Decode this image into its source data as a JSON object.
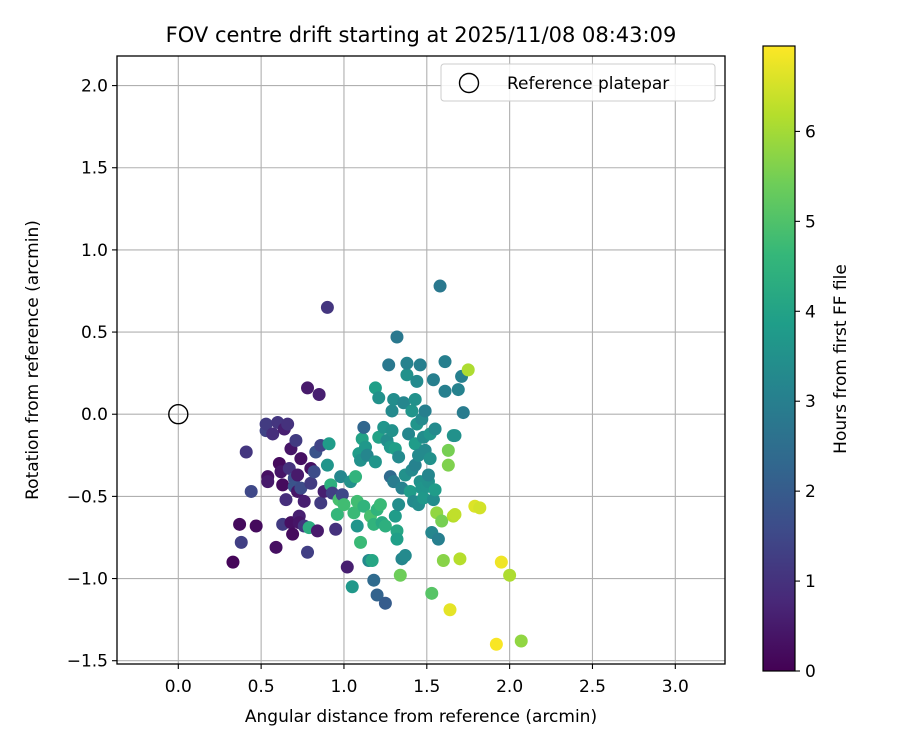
{
  "chart_data": {
    "type": "scatter",
    "title": "FOV centre drift starting at 2025/11/08 08:43:09",
    "xlabel": "Angular distance from reference (arcmin)",
    "ylabel": "Rotation from reference (arcmin)",
    "xlim": [
      -0.37,
      3.3
    ],
    "ylim": [
      -1.52,
      2.18
    ],
    "xticks": [
      0.0,
      0.5,
      1.0,
      1.5,
      2.0,
      2.5,
      3.0
    ],
    "xtick_labels": [
      "0.0",
      "0.5",
      "1.0",
      "1.5",
      "2.0",
      "2.5",
      "3.0"
    ],
    "yticks": [
      -1.5,
      -1.0,
      -0.5,
      0.0,
      0.5,
      1.0,
      1.5,
      2.0
    ],
    "ytick_labels": [
      "−1.5",
      "−1.0",
      "−0.5",
      "0.0",
      "0.5",
      "1.0",
      "1.5",
      "2.0"
    ],
    "grid": true,
    "legend": {
      "position": "top-right",
      "entries": [
        "Reference platepar"
      ]
    },
    "reference_point": {
      "x": 0.0,
      "y": 0.0,
      "label": "Reference platepar"
    },
    "colorbar": {
      "label": "Hours from first FF file",
      "colormap": "viridis",
      "range": [
        0,
        6.95
      ],
      "ticks": [
        0,
        1,
        2,
        3,
        4,
        5,
        6
      ],
      "tick_labels": [
        "0",
        "1",
        "2",
        "3",
        "4",
        "5",
        "6"
      ]
    },
    "points": [
      [
        0.33,
        -0.9,
        0.1
      ],
      [
        0.37,
        -0.67,
        0.2
      ],
      [
        0.38,
        -0.78,
        1.3
      ],
      [
        0.41,
        -0.23,
        1.1
      ],
      [
        0.44,
        -0.47,
        1.5
      ],
      [
        0.47,
        -0.68,
        0.2
      ],
      [
        0.53,
        -0.1,
        1.4
      ],
      [
        0.53,
        -0.06,
        1.2
      ],
      [
        0.54,
        -0.38,
        0.3
      ],
      [
        0.54,
        -0.41,
        0.5
      ],
      [
        0.57,
        -0.12,
        0.9
      ],
      [
        0.59,
        -0.81,
        0.3
      ],
      [
        0.6,
        -0.05,
        1.1
      ],
      [
        0.61,
        -0.3,
        0.2
      ],
      [
        0.62,
        -0.35,
        0.4
      ],
      [
        0.63,
        -0.43,
        0.2
      ],
      [
        0.63,
        -0.67,
        1.2
      ],
      [
        0.64,
        -0.09,
        0.6
      ],
      [
        0.65,
        -0.52,
        0.9
      ],
      [
        0.66,
        -0.06,
        1.0
      ],
      [
        0.67,
        -0.33,
        1.0
      ],
      [
        0.68,
        -0.21,
        0.4
      ],
      [
        0.68,
        -0.66,
        0.3
      ],
      [
        0.69,
        -0.73,
        0.2
      ],
      [
        0.7,
        -0.39,
        1.7
      ],
      [
        0.7,
        -0.44,
        1.8
      ],
      [
        0.71,
        -0.16,
        1.2
      ],
      [
        0.72,
        -0.37,
        0.5
      ],
      [
        0.72,
        -0.47,
        0.4
      ],
      [
        0.73,
        -0.62,
        0.6
      ],
      [
        0.73,
        -0.66,
        0.4
      ],
      [
        0.74,
        -0.27,
        0.3
      ],
      [
        0.74,
        -0.45,
        1.6
      ],
      [
        0.76,
        -0.53,
        0.6
      ],
      [
        0.76,
        -0.68,
        1.1
      ],
      [
        0.78,
        0.16,
        0.5
      ],
      [
        0.78,
        -0.84,
        1.3
      ],
      [
        0.79,
        -0.69,
        4.3
      ],
      [
        0.8,
        -0.33,
        0.3
      ],
      [
        0.8,
        -0.42,
        1.2
      ],
      [
        0.82,
        -0.35,
        1.6
      ],
      [
        0.83,
        -0.23,
        1.8
      ],
      [
        0.84,
        -0.71,
        0.5
      ],
      [
        0.85,
        0.12,
        0.6
      ],
      [
        0.86,
        -0.54,
        1.2
      ],
      [
        0.86,
        -0.19,
        1.4
      ],
      [
        0.88,
        -0.47,
        0.6
      ],
      [
        0.9,
        0.65,
        1.1
      ],
      [
        0.9,
        -0.31,
        3.6
      ],
      [
        0.91,
        -0.18,
        3.8
      ],
      [
        0.92,
        -0.43,
        4.4
      ],
      [
        0.93,
        -0.48,
        1.3
      ],
      [
        0.95,
        -0.7,
        1.0
      ],
      [
        0.96,
        -0.61,
        4.6
      ],
      [
        0.97,
        -0.52,
        4.9
      ],
      [
        0.98,
        -0.38,
        3.2
      ],
      [
        0.99,
        -0.49,
        1.5
      ],
      [
        1.0,
        -0.55,
        4.8
      ],
      [
        1.02,
        -0.93,
        0.6
      ],
      [
        1.04,
        -0.41,
        3.5
      ],
      [
        1.05,
        -1.05,
        3.7
      ],
      [
        1.06,
        -0.6,
        4.7
      ],
      [
        1.07,
        -0.38,
        4.5
      ],
      [
        1.08,
        -0.53,
        4.8
      ],
      [
        1.08,
        -0.68,
        3.6
      ],
      [
        1.09,
        -0.24,
        3.8
      ],
      [
        1.1,
        -0.28,
        3.5
      ],
      [
        1.1,
        -0.78,
        4.7
      ],
      [
        1.11,
        -0.15,
        4.0
      ],
      [
        1.12,
        -0.08,
        2.3
      ],
      [
        1.12,
        -0.56,
        4.5
      ],
      [
        1.13,
        -0.2,
        3.7
      ],
      [
        1.14,
        -0.25,
        3.2
      ],
      [
        1.15,
        -0.89,
        3.3
      ],
      [
        1.16,
        -0.62,
        4.9
      ],
      [
        1.17,
        -0.89,
        4.1
      ],
      [
        1.18,
        -1.01,
        2.4
      ],
      [
        1.18,
        -0.67,
        4.5
      ],
      [
        1.19,
        0.16,
        3.9
      ],
      [
        1.19,
        -0.29,
        3.6
      ],
      [
        1.2,
        -0.58,
        4.5
      ],
      [
        1.2,
        -1.1,
        2.2
      ],
      [
        1.21,
        0.1,
        3.5
      ],
      [
        1.21,
        -0.14,
        4.0
      ],
      [
        1.22,
        -0.55,
        4.7
      ],
      [
        1.23,
        -0.66,
        4.2
      ],
      [
        1.24,
        -0.08,
        3.6
      ],
      [
        1.25,
        -0.68,
        4.4
      ],
      [
        1.25,
        -1.15,
        2.0
      ],
      [
        1.26,
        -0.16,
        3.4
      ],
      [
        1.27,
        0.3,
        2.8
      ],
      [
        1.28,
        -0.38,
        2.4
      ],
      [
        1.28,
        -0.2,
        3.7
      ],
      [
        1.29,
        -0.1,
        3.5
      ],
      [
        1.29,
        0.02,
        3.3
      ],
      [
        1.3,
        0.09,
        3.4
      ],
      [
        1.3,
        -0.41,
        2.9
      ],
      [
        1.31,
        -0.62,
        3.8
      ],
      [
        1.31,
        -0.21,
        3.9
      ],
      [
        1.32,
        -0.71,
        4.1
      ],
      [
        1.32,
        -0.76,
        3.9
      ],
      [
        1.32,
        0.47,
        2.8
      ],
      [
        1.33,
        -0.26,
        3.3
      ],
      [
        1.33,
        -0.55,
        3.4
      ],
      [
        1.34,
        -0.98,
        5.4
      ],
      [
        1.35,
        -0.45,
        3.1
      ],
      [
        1.35,
        -0.88,
        3.2
      ],
      [
        1.36,
        0.07,
        3.2
      ],
      [
        1.37,
        -0.86,
        3.3
      ],
      [
        1.37,
        -0.37,
        3.5
      ],
      [
        1.38,
        0.24,
        3.5
      ],
      [
        1.38,
        0.31,
        3.1
      ],
      [
        1.39,
        -0.12,
        3.2
      ],
      [
        1.4,
        -0.47,
        3.8
      ],
      [
        1.41,
        0.02,
        3.6
      ],
      [
        1.41,
        -0.34,
        3.3
      ],
      [
        1.42,
        -0.53,
        3.3
      ],
      [
        1.43,
        -0.31,
        3.1
      ],
      [
        1.43,
        0.09,
        3.5
      ],
      [
        1.43,
        -0.18,
        3.8
      ],
      [
        1.44,
        0.2,
        3.3
      ],
      [
        1.44,
        -0.06,
        3.6
      ],
      [
        1.45,
        -0.25,
        3.3
      ],
      [
        1.45,
        -0.55,
        3.4
      ],
      [
        1.46,
        -0.41,
        3.5
      ],
      [
        1.46,
        0.3,
        3.0
      ],
      [
        1.47,
        -0.45,
        3.6
      ],
      [
        1.47,
        -0.03,
        3.3
      ],
      [
        1.48,
        -0.14,
        3.4
      ],
      [
        1.48,
        -0.51,
        3.7
      ],
      [
        1.49,
        0.02,
        3.0
      ],
      [
        1.49,
        -0.22,
        3.3
      ],
      [
        1.5,
        -0.44,
        3.6
      ],
      [
        1.51,
        -0.41,
        3.5
      ],
      [
        1.51,
        -0.37,
        3.2
      ],
      [
        1.52,
        -0.12,
        3.6
      ],
      [
        1.52,
        -0.27,
        3.5
      ],
      [
        1.53,
        -1.09,
        5.1
      ],
      [
        1.53,
        -0.72,
        3.2
      ],
      [
        1.54,
        0.21,
        3.0
      ],
      [
        1.54,
        -0.52,
        3.4
      ],
      [
        1.55,
        -0.46,
        3.8
      ],
      [
        1.55,
        -0.09,
        3.3
      ],
      [
        1.56,
        -0.6,
        5.8
      ],
      [
        1.57,
        -0.76,
        3.0
      ],
      [
        1.58,
        0.78,
        2.8
      ],
      [
        1.59,
        -0.65,
        5.5
      ],
      [
        1.6,
        -0.89,
        5.7
      ],
      [
        1.61,
        0.32,
        3.0
      ],
      [
        1.61,
        0.14,
        3.0
      ],
      [
        1.63,
        -0.31,
        5.6
      ],
      [
        1.63,
        -0.22,
        5.5
      ],
      [
        1.64,
        -1.19,
        6.7
      ],
      [
        1.66,
        -0.62,
        6.2
      ],
      [
        1.66,
        -0.13,
        3.6
      ],
      [
        1.67,
        -0.61,
        6.3
      ],
      [
        1.67,
        -0.13,
        3.5
      ],
      [
        1.69,
        0.15,
        3.1
      ],
      [
        1.7,
        -0.88,
        6.2
      ],
      [
        1.71,
        0.23,
        3.0
      ],
      [
        1.72,
        0.01,
        2.9
      ],
      [
        1.75,
        0.27,
        6.1
      ],
      [
        1.79,
        -0.56,
        6.6
      ],
      [
        1.82,
        -0.57,
        6.5
      ],
      [
        1.92,
        -1.4,
        6.9
      ],
      [
        1.95,
        -0.9,
        6.8
      ],
      [
        2.0,
        -0.98,
        6.1
      ],
      [
        2.07,
        -1.38,
        5.8
      ]
    ]
  }
}
